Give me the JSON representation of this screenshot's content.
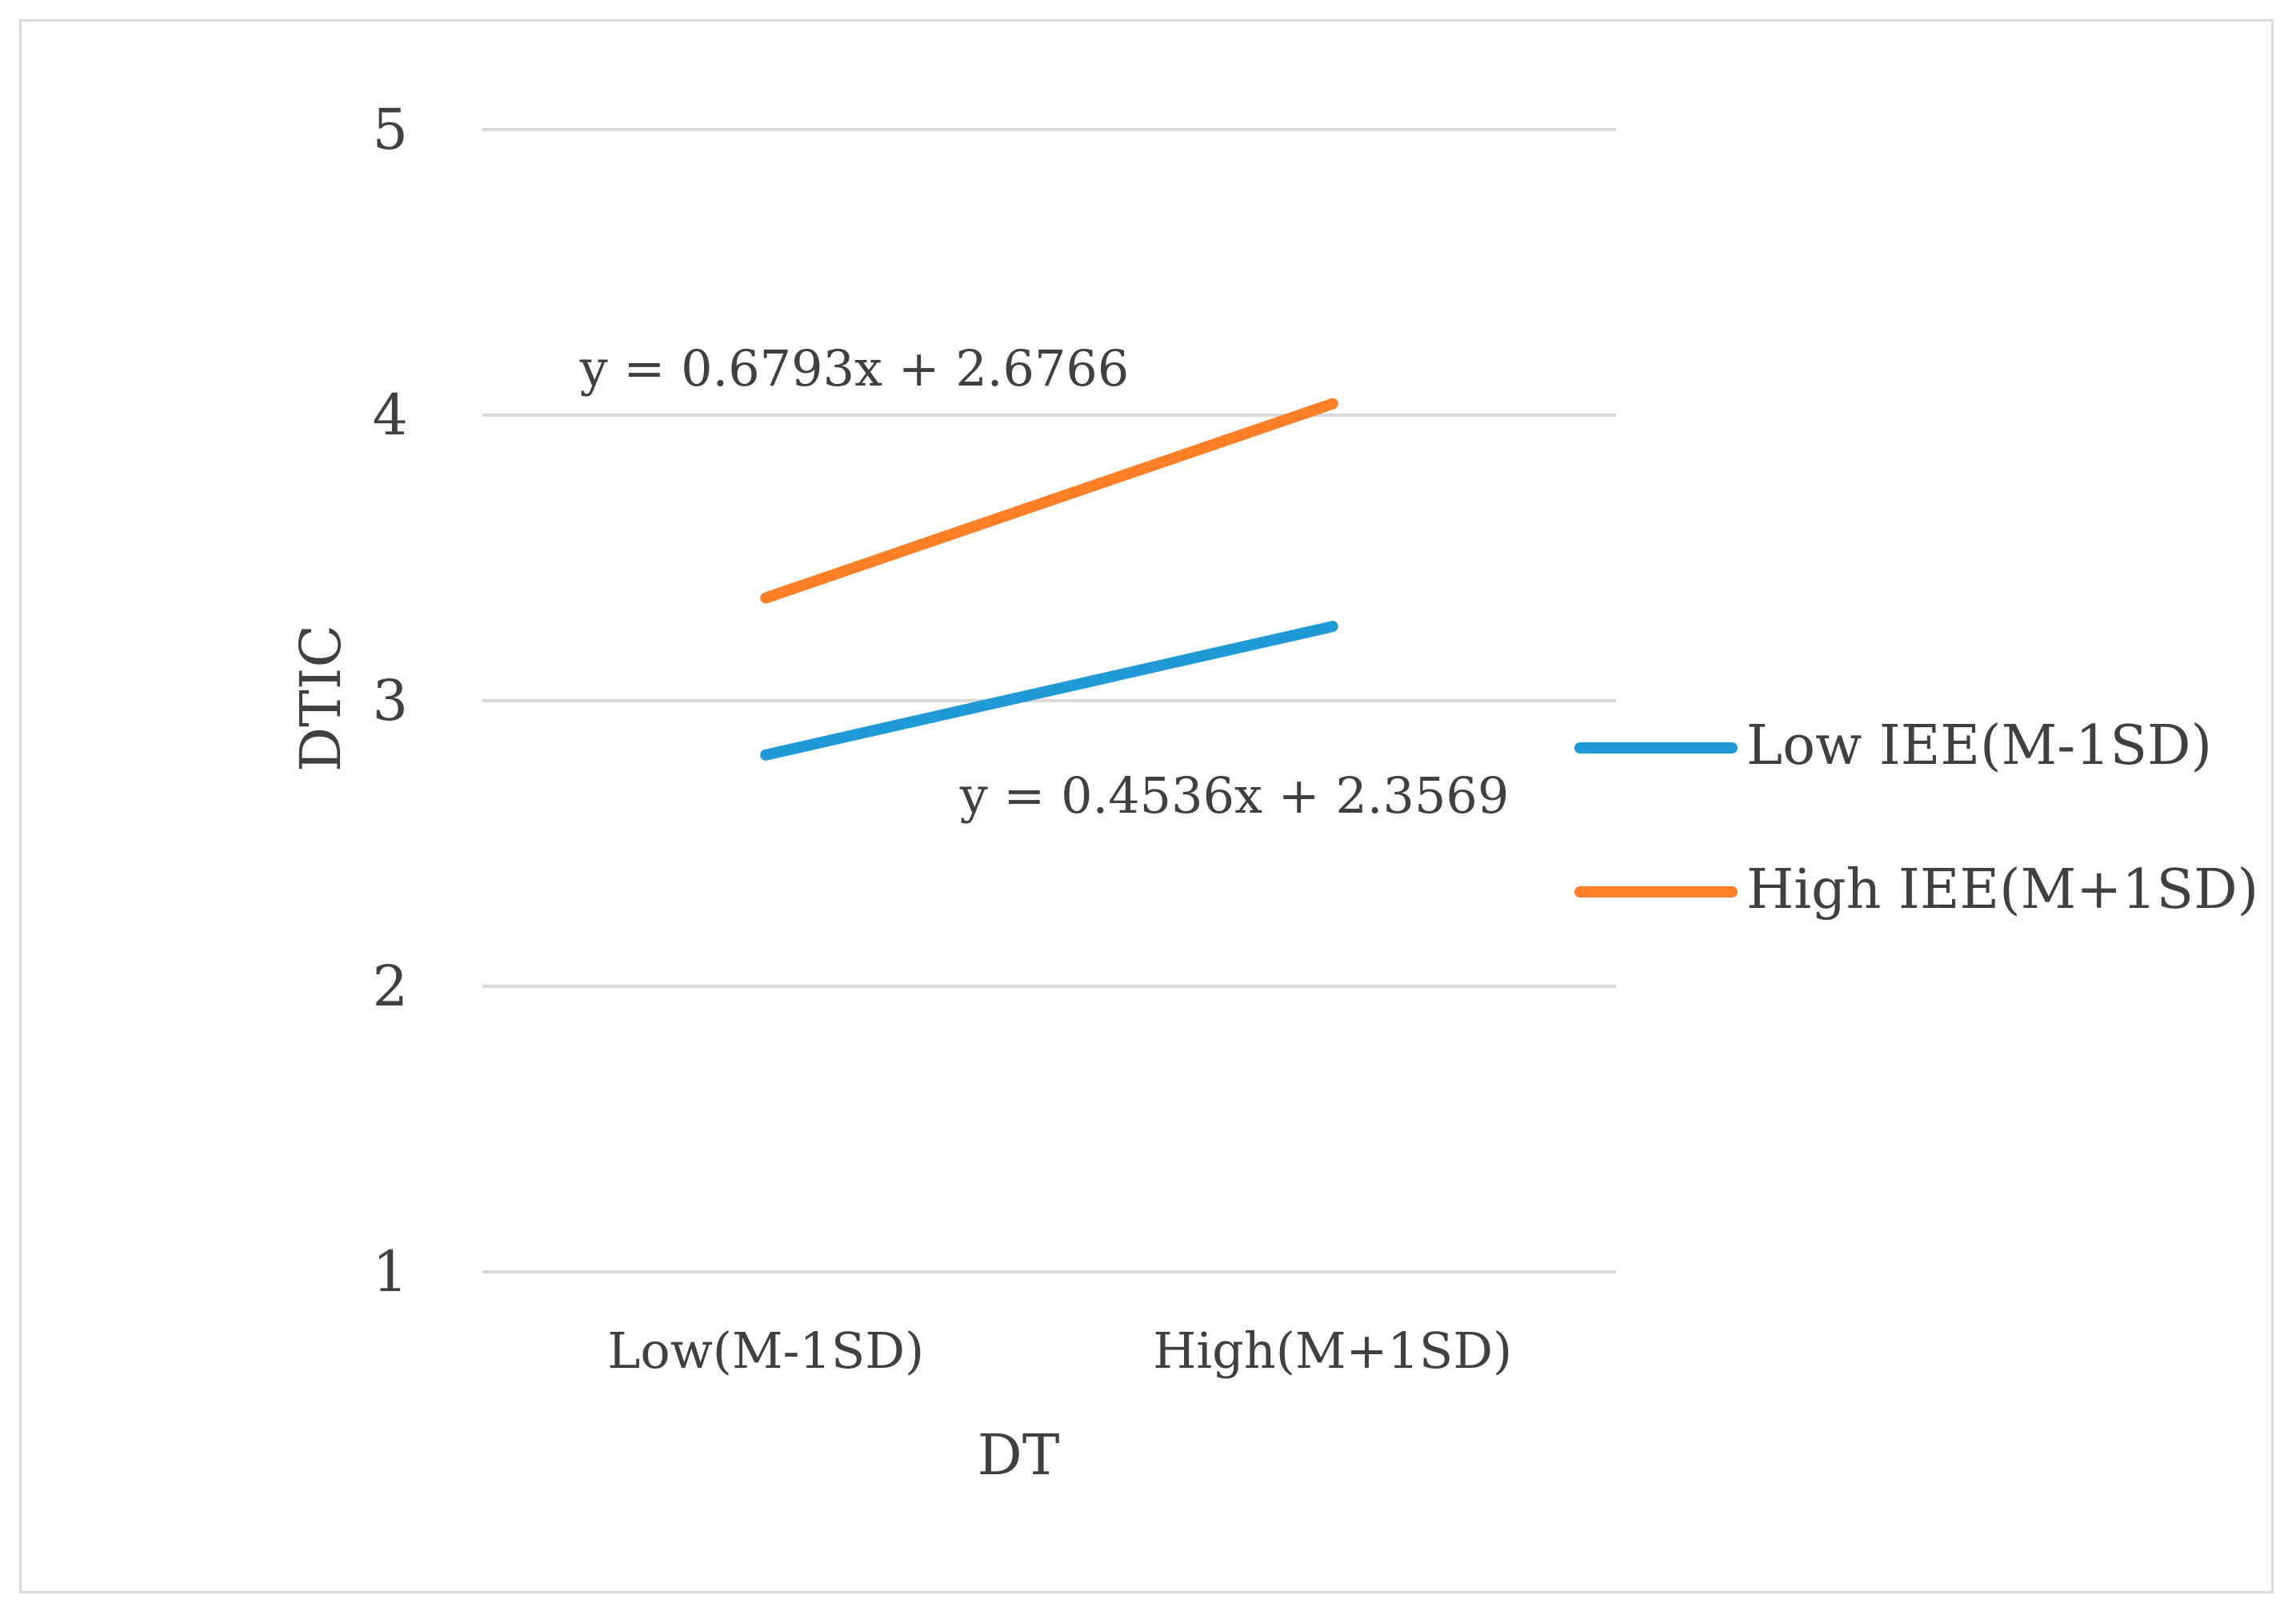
{
  "chart_data": {
    "type": "line",
    "title": "",
    "xlabel": "DT",
    "ylabel": "DTIC",
    "categories": [
      "Low(M-1SD)",
      "High(M+1SD)"
    ],
    "ylim": [
      1,
      5
    ],
    "yticks": [
      "1",
      "2",
      "3",
      "4",
      "5"
    ],
    "grid": true,
    "legend_position": "right",
    "series": [
      {
        "name": "Low IEE(M-1SD)",
        "values": [
          2.81,
          3.26
        ],
        "color": "#1f9ad6"
      },
      {
        "name": "High IEE(M+1SD)",
        "values": [
          3.36,
          4.04
        ],
        "color": "#ff7f27"
      }
    ],
    "annotations": [
      {
        "text": "y = 0.6793x + 2.6766",
        "series": "High IEE(M+1SD)"
      },
      {
        "text": "y = 0.4536x + 2.3569",
        "series": "Low IEE(M-1SD)"
      }
    ]
  }
}
